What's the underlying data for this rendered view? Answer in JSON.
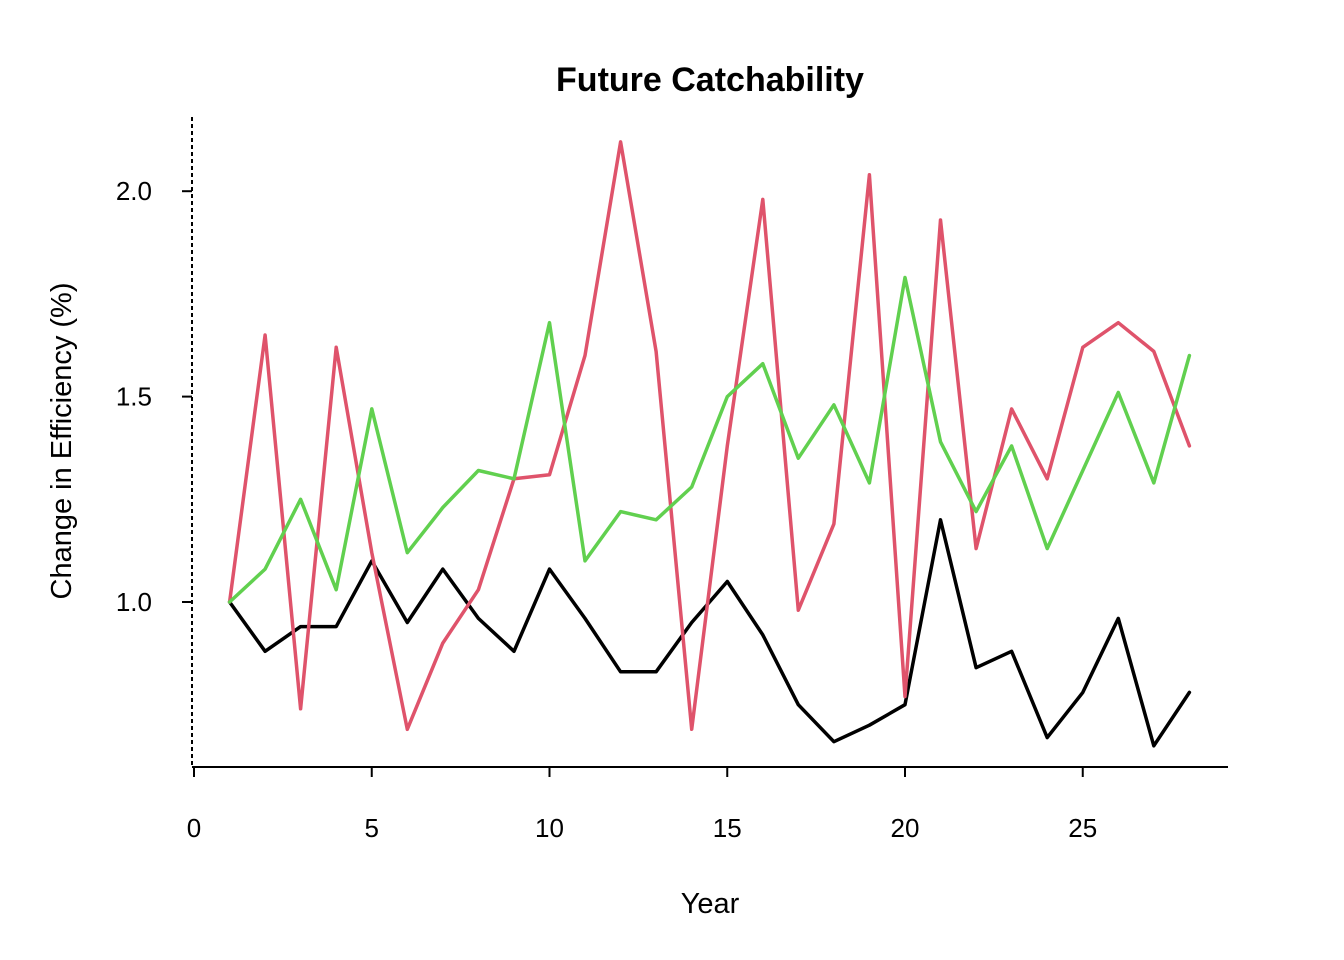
{
  "chart_data": {
    "type": "line",
    "title": "Future Catchability",
    "xlabel": "Year",
    "ylabel": "Change in Efficiency (%)",
    "xlim": [
      0,
      29
    ],
    "ylim": [
      0.6,
      2.18
    ],
    "xticks": [
      0,
      5,
      10,
      15,
      20,
      25
    ],
    "yticks": [
      1.0,
      1.5,
      2.0
    ],
    "ytick_labels": [
      "1.0",
      "1.5",
      "2.0"
    ],
    "grid": false,
    "legend": "none",
    "x": [
      1,
      2,
      3,
      4,
      5,
      6,
      7,
      8,
      9,
      10,
      11,
      12,
      13,
      14,
      15,
      16,
      17,
      18,
      19,
      20,
      21,
      22,
      23,
      24,
      25,
      26,
      27,
      28
    ],
    "series": [
      {
        "color": "#000000",
        "values": [
          1.0,
          0.88,
          0.94,
          0.94,
          1.1,
          0.95,
          1.08,
          0.96,
          0.88,
          1.08,
          0.96,
          0.83,
          0.83,
          0.95,
          1.05,
          0.92,
          0.75,
          0.66,
          0.7,
          0.75,
          1.2,
          0.84,
          0.88,
          0.67,
          0.78,
          0.96,
          0.65,
          0.78
        ]
      },
      {
        "color": "#DF536B",
        "values": [
          1.0,
          1.65,
          0.74,
          1.62,
          1.12,
          0.69,
          0.9,
          1.03,
          1.3,
          1.31,
          1.6,
          2.12,
          1.61,
          0.69,
          1.38,
          1.98,
          0.98,
          1.19,
          2.04,
          0.77,
          1.93,
          1.13,
          1.47,
          1.3,
          1.62,
          1.68,
          1.61,
          1.38
        ]
      },
      {
        "color": "#61D04F",
        "values": [
          1.0,
          1.08,
          1.25,
          1.03,
          1.47,
          1.12,
          1.23,
          1.32,
          1.3,
          1.68,
          1.1,
          1.22,
          1.2,
          1.28,
          1.5,
          1.58,
          1.35,
          1.48,
          1.29,
          1.79,
          1.39,
          1.22,
          1.38,
          1.13,
          1.32,
          1.51,
          1.29,
          1.6
        ]
      }
    ]
  }
}
